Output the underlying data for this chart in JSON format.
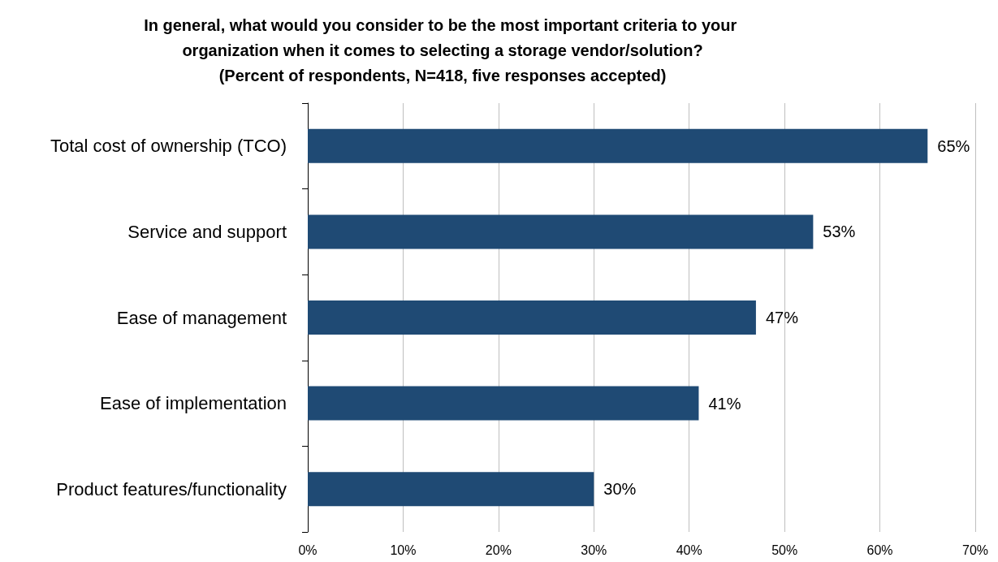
{
  "chart_data": {
    "type": "bar",
    "orientation": "horizontal",
    "title": "In general, what would you consider to be the most important criteria to your organization when it comes to selecting a storage vendor/solution?\n(Percent of respondents, N=418, five responses accepted)",
    "categories": [
      "Total cost of ownership (TCO)",
      "Service and support",
      "Ease of management",
      "Ease of implementation",
      "Product features/functionality"
    ],
    "values": [
      65,
      53,
      47,
      41,
      30
    ],
    "value_labels": [
      "65%",
      "53%",
      "47%",
      "41%",
      "30%"
    ],
    "color": "#1f4a74",
    "xlim": [
      0,
      70
    ],
    "xticks": [
      {
        "value": 0,
        "label": "0%"
      },
      {
        "value": 10,
        "label": "10%"
      },
      {
        "value": 20,
        "label": "20%"
      },
      {
        "value": 30,
        "label": "30%"
      },
      {
        "value": 40,
        "label": "40%"
      },
      {
        "value": 50,
        "label": "50%"
      },
      {
        "value": 60,
        "label": "60%"
      },
      {
        "value": 70,
        "label": "70%"
      }
    ],
    "grid": "x"
  }
}
